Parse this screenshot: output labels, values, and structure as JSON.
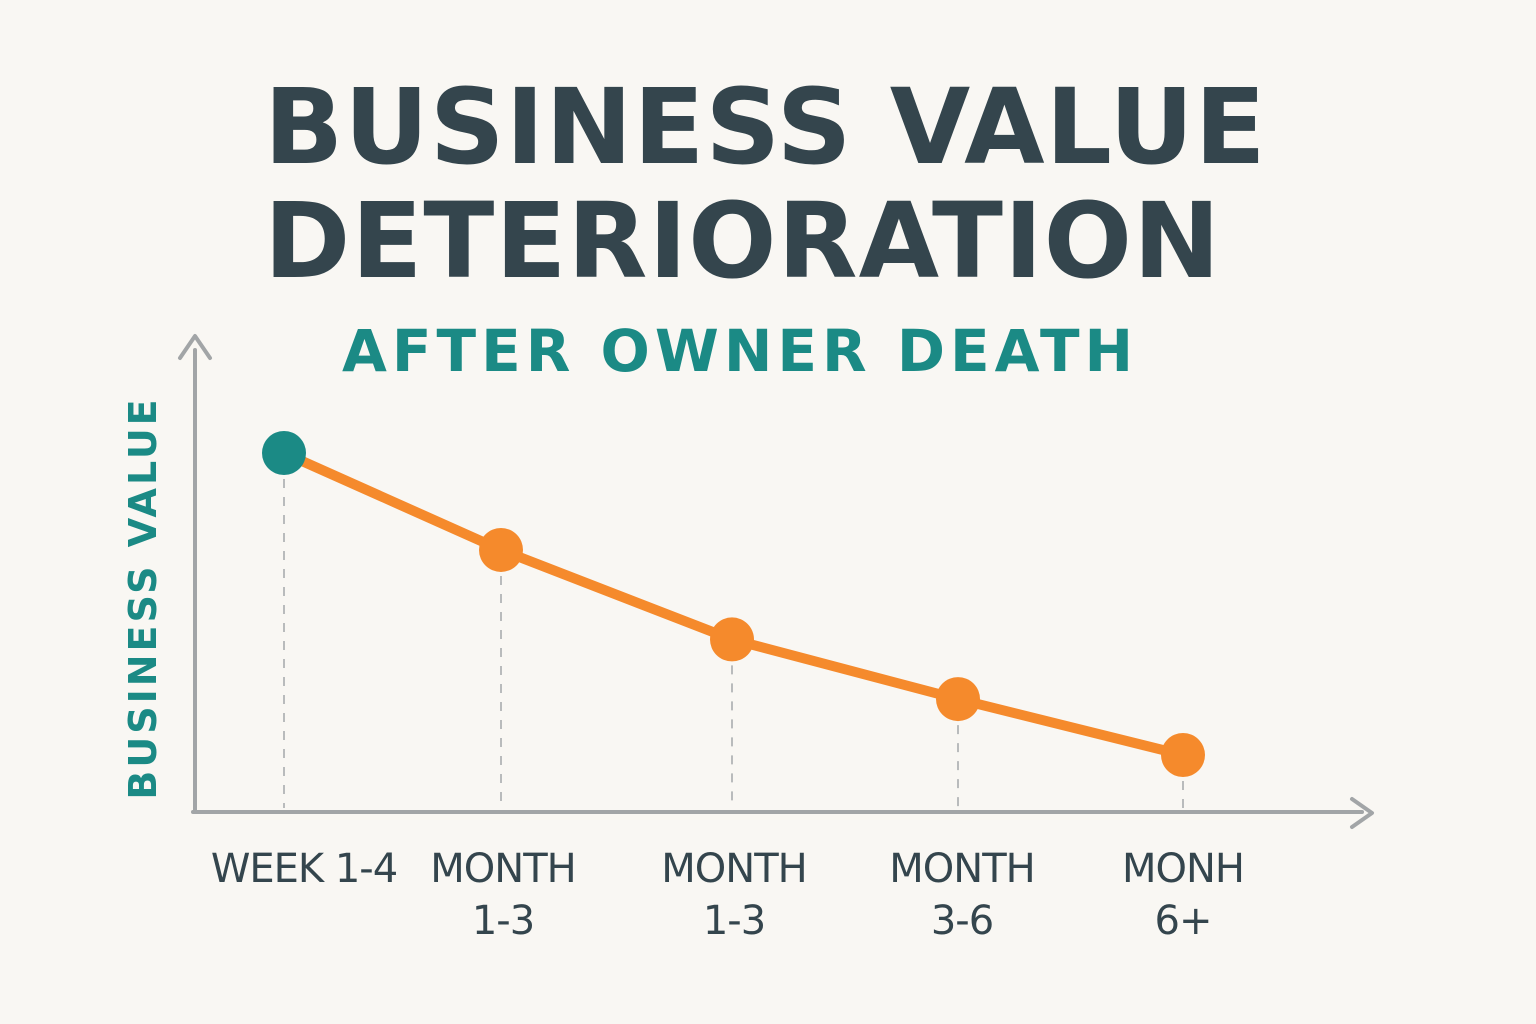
{
  "title_line1": "BUSINESS VALUE",
  "title_line2": "DETERIORATION",
  "subtitle": "AFTER OWNER DEATH",
  "colors": {
    "background": "#f9f7f3",
    "title": "#34454d",
    "accent_teal": "#1b8a85",
    "line_orange": "#f58a2c",
    "axis": "#a2a5a7"
  },
  "chart_data": {
    "type": "line",
    "title": "BUSINESS VALUE DETERIORATION",
    "subtitle": "AFTER OWNER DEATH",
    "ylabel": "BUSINESS VALUE",
    "xlabel": "",
    "categories": [
      [
        "WEEK 1-4"
      ],
      [
        "MONTH",
        "1-3"
      ],
      [
        "MONTH",
        "1-3"
      ],
      [
        "MONTH",
        "3-6"
      ],
      [
        "MONH",
        "6+"
      ]
    ],
    "values": [
      100,
      74,
      50,
      34,
      19
    ],
    "ylim": [
      0,
      100
    ],
    "y_ticks_shown": false,
    "grid": false,
    "drop_lines": true,
    "point_colors": [
      "#1b8a85",
      "#f58a2c",
      "#f58a2c",
      "#f58a2c",
      "#f58a2c"
    ],
    "legend": "none"
  }
}
